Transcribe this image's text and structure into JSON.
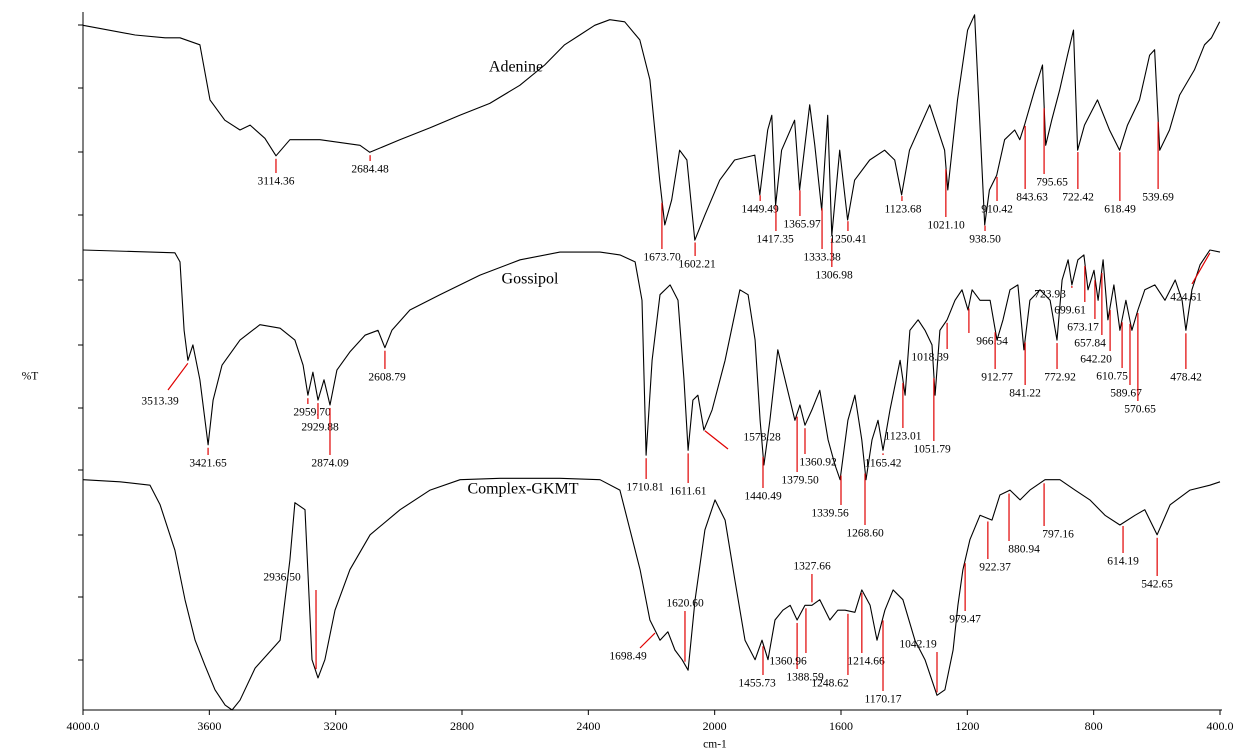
{
  "chart_data": {
    "type": "line",
    "x_label": "cm-1",
    "y_label": "%T",
    "xlim": [
      4000,
      400
    ],
    "ylim": [
      0,
      100
    ],
    "xticks": [
      {
        "value": 4000,
        "label": "4000.0"
      },
      3600,
      3200,
      2800,
      2400,
      2000,
      1600,
      1200,
      800,
      {
        "value": 400,
        "label": "400.0"
      }
    ],
    "peak_color": "#e00000",
    "series": [
      {
        "name": "Adenine",
        "color": "#000000",
        "x": [
          4000,
          3835,
          3740,
          3693,
          3630,
          3598,
          3551,
          3503,
          3471,
          3424,
          3389,
          3345,
          3250,
          3123,
          3092,
          2997,
          2902,
          2807,
          2712,
          2617,
          2538,
          2475,
          2427,
          2380,
          2332,
          2285,
          2237,
          2205,
          2174,
          2158,
          2136,
          2111,
          2088,
          2063,
          2031,
          1984,
          1937,
          1873,
          1857,
          1832,
          1819,
          1807,
          1788,
          1747,
          1731,
          1699,
          1683,
          1661,
          1642,
          1629,
          1604,
          1579,
          1557,
          1509,
          1462,
          1430,
          1408,
          1383,
          1319,
          1272,
          1262,
          1231,
          1199,
          1177,
          1161,
          1145,
          1130,
          1107,
          1082,
          1050,
          1034,
          1019,
          987,
          962,
          952,
          933,
          908,
          883,
          864,
          851,
          829,
          788,
          750,
          718,
          693,
          655,
          623,
          607,
          591,
          560,
          528,
          481,
          449,
          427,
          401
        ],
        "values": [
          98.1,
          96.7,
          96.3,
          96.3,
          95.3,
          87.4,
          84.5,
          83.1,
          83.8,
          81.9,
          79.4,
          81.7,
          81.7,
          80.9,
          79.9,
          81.7,
          83.4,
          85.2,
          86.9,
          89.5,
          92.4,
          95.3,
          96.7,
          98.1,
          98.9,
          98.6,
          96.0,
          90.3,
          75.9,
          69.5,
          73.1,
          80.2,
          78.8,
          67.3,
          70.9,
          75.9,
          78.8,
          79.5,
          73.8,
          83.1,
          85.2,
          72.3,
          80.2,
          84.5,
          74.5,
          86.7,
          80.9,
          71.6,
          85.2,
          68.0,
          80.2,
          70.2,
          75.9,
          78.8,
          80.2,
          78.8,
          73.8,
          80.2,
          86.7,
          80.2,
          74.5,
          87.4,
          97.4,
          99.6,
          84.5,
          69.5,
          74.5,
          76.6,
          81.7,
          83.1,
          81.7,
          83.8,
          88.8,
          92.4,
          80.9,
          84.5,
          88.8,
          93.8,
          97.4,
          80.2,
          83.8,
          87.4,
          83.1,
          80.2,
          83.8,
          87.4,
          93.8,
          94.6,
          80.2,
          83.1,
          88.1,
          91.7,
          95.3,
          96.3,
          98.6
        ],
        "peaks": [
          {
            "x": 3389,
            "label": "3114.36"
          },
          {
            "x": 3091,
            "label": "2684.48"
          },
          {
            "x": 2167,
            "label": "1673.70"
          },
          {
            "x": 2062,
            "label": "1602.21"
          },
          {
            "x": 1856,
            "label": "1449.49"
          },
          {
            "x": 1806,
            "label": "1417.35"
          },
          {
            "x": 1730,
            "label": "1365.97"
          },
          {
            "x": 1660,
            "label": "1333.38"
          },
          {
            "x": 1629,
            "label": "1306.98"
          },
          {
            "x": 1578,
            "label": "1250.41"
          },
          {
            "x": 1407,
            "label": "1123.68"
          },
          {
            "x": 1268,
            "label": "1021.10"
          },
          {
            "x": 1144,
            "label": "938.50"
          },
          {
            "x": 1106,
            "label": "910.42"
          },
          {
            "x": 1017,
            "label": "843.63"
          },
          {
            "x": 957,
            "label": "795.65"
          },
          {
            "x": 850,
            "label": "722.42"
          },
          {
            "x": 717,
            "label": "618.49"
          },
          {
            "x": 596,
            "label": "539.69"
          }
        ]
      },
      {
        "name": "Gossipol",
        "color": "#000000",
        "x": [
          4000,
          3709,
          3693,
          3680,
          3668,
          3652,
          3630,
          3604,
          3588,
          3560,
          3503,
          3440,
          3376,
          3329,
          3303,
          3288,
          3272,
          3256,
          3237,
          3218,
          3196,
          3155,
          3107,
          3066,
          3044,
          3022,
          2965,
          2870,
          2743,
          2616,
          2490,
          2363,
          2300,
          2252,
          2230,
          2217,
          2198,
          2173,
          2141,
          2116,
          2097,
          2084,
          2069,
          2053,
          2034,
          2008,
          1967,
          1920,
          1894,
          1872,
          1856,
          1844,
          1825,
          1800,
          1777,
          1746,
          1730,
          1714,
          1692,
          1667,
          1641,
          1619,
          1603,
          1578,
          1556,
          1534,
          1521,
          1502,
          1483,
          1467,
          1445,
          1413,
          1397,
          1382,
          1356,
          1334,
          1312,
          1302,
          1287,
          1264,
          1239,
          1217,
          1198,
          1185,
          1160,
          1128,
          1106,
          1087,
          1065,
          1040,
          1021,
          1002,
          970,
          938,
          916,
          900,
          881,
          869,
          850,
          831,
          818,
          799,
          786,
          770,
          755,
          736,
          717,
          698,
          679,
          660,
          638,
          606,
          574,
          542,
          520,
          508,
          489,
          463,
          432,
          400
        ],
        "values": [
          65.9,
          65.5,
          64.2,
          54.4,
          50.1,
          52.3,
          47.3,
          38.0,
          44.4,
          49.4,
          53.0,
          55.2,
          54.7,
          53.0,
          49.4,
          45.1,
          48.4,
          44.4,
          47.3,
          43.7,
          48.7,
          51.3,
          53.7,
          54.4,
          51.9,
          54.4,
          57.3,
          59.5,
          62.3,
          64.5,
          65.6,
          65.6,
          65.2,
          64.2,
          58.7,
          36.5,
          50.1,
          59.5,
          60.9,
          58.7,
          47.3,
          37.2,
          44.4,
          45.1,
          40.1,
          43.0,
          50.1,
          60.2,
          59.5,
          53.0,
          41.5,
          35.1,
          41.5,
          51.6,
          47.3,
          41.5,
          43.7,
          40.8,
          43.0,
          45.8,
          38.7,
          35.1,
          33.0,
          41.5,
          45.1,
          38.7,
          33.0,
          38.7,
          41.5,
          37.2,
          43.0,
          50.1,
          45.1,
          54.4,
          55.9,
          54.4,
          52.3,
          45.1,
          54.4,
          55.9,
          58.7,
          60.2,
          57.3,
          60.2,
          58.7,
          58.7,
          53.0,
          55.9,
          60.2,
          60.9,
          51.6,
          58.7,
          60.2,
          58.7,
          53.0,
          61.6,
          64.5,
          60.9,
          64.5,
          65.2,
          60.2,
          63.0,
          58.7,
          64.5,
          55.9,
          60.9,
          54.4,
          58.7,
          54.4,
          57.3,
          60.2,
          60.9,
          58.7,
          61.6,
          58.7,
          54.4,
          60.2,
          63.8,
          65.9,
          65.6
        ],
        "peaks": [
          {
            "x": 3668,
            "label": "3513.39"
          },
          {
            "x": 3604,
            "label": "3421.65"
          },
          {
            "x": 3288,
            "label": "2959.70"
          },
          {
            "x": 3256,
            "label": "2929.88"
          },
          {
            "x": 3218,
            "label": "2874.09"
          },
          {
            "x": 3044,
            "label": "2608.79"
          },
          {
            "x": 2217,
            "label": "1710.81"
          },
          {
            "x": 2084,
            "label": "1611.61"
          },
          {
            "x": 2031,
            "label": "1578.28"
          },
          {
            "x": 1847,
            "label": "1440.49"
          },
          {
            "x": 1739,
            "label": "1379.50"
          },
          {
            "x": 1714,
            "label": "1360.92"
          },
          {
            "x": 1600,
            "label": "1339.56"
          },
          {
            "x": 1524,
            "label": "1268.60"
          },
          {
            "x": 1467,
            "label": "1165.42"
          },
          {
            "x": 1404,
            "label": "1123.01"
          },
          {
            "x": 1306,
            "label": "1051.79"
          },
          {
            "x": 1264,
            "label": "1018.39"
          },
          {
            "x": 1195,
            "label": "966.54"
          },
          {
            "x": 1112,
            "label": "912.77"
          },
          {
            "x": 1017,
            "label": "841.22"
          },
          {
            "x": 916,
            "label": "772.92"
          },
          {
            "x": 869,
            "label": "723.93"
          },
          {
            "x": 828,
            "label": "699.61"
          },
          {
            "x": 796,
            "label": "673.17"
          },
          {
            "x": 774,
            "label": "657.84"
          },
          {
            "x": 748,
            "label": "642.20"
          },
          {
            "x": 710,
            "label": "610.75"
          },
          {
            "x": 685,
            "label": "589.67"
          },
          {
            "x": 660,
            "label": "570.65"
          },
          {
            "x": 508,
            "label": "478.42"
          },
          {
            "x": 432,
            "label": "424.61"
          }
        ]
      },
      {
        "name": "Complex-GKMT",
        "color": "#000000",
        "x": [
          4000,
          3883,
          3788,
          3756,
          3709,
          3677,
          3645,
          3614,
          3582,
          3550,
          3528,
          3503,
          3455,
          3376,
          3345,
          3329,
          3297,
          3275,
          3256,
          3234,
          3202,
          3155,
          3091,
          2996,
          2901,
          2806,
          2680,
          2490,
          2363,
          2300,
          2268,
          2236,
          2205,
          2173,
          2148,
          2126,
          2103,
          2084,
          2062,
          2031,
          1999,
          1967,
          1936,
          1904,
          1872,
          1850,
          1831,
          1809,
          1784,
          1761,
          1739,
          1714,
          1692,
          1667,
          1635,
          1610,
          1587,
          1556,
          1534,
          1508,
          1486,
          1461,
          1435,
          1404,
          1366,
          1334,
          1296,
          1271,
          1245,
          1230,
          1214,
          1192,
          1160,
          1122,
          1097,
          1065,
          1033,
          1002,
          954,
          907,
          859,
          812,
          764,
          717,
          669,
          638,
          599,
          558,
          495,
          432,
          400
        ],
        "values": [
          33.0,
          32.7,
          32.2,
          29.4,
          22.9,
          15.8,
          10.0,
          6.4,
          2.9,
          0.7,
          0,
          1.4,
          6.0,
          10.0,
          21.5,
          29.7,
          28.7,
          7.2,
          4.6,
          7.2,
          14.3,
          20.1,
          25.1,
          28.7,
          31.5,
          33.0,
          33.2,
          33.2,
          33.0,
          31.5,
          25.8,
          20.1,
          12.9,
          10.0,
          11.2,
          8.6,
          7.2,
          5.7,
          15.8,
          25.8,
          30.1,
          27.2,
          18.6,
          10.0,
          7.2,
          10.0,
          7.2,
          12.9,
          14.3,
          15.0,
          12.9,
          15.0,
          15.0,
          15.8,
          12.9,
          14.3,
          14.3,
          14.0,
          17.2,
          15.0,
          10.0,
          14.3,
          17.2,
          15.8,
          10.0,
          7.2,
          2.1,
          2.9,
          8.6,
          15.0,
          20.1,
          24.4,
          27.9,
          27.2,
          30.8,
          31.5,
          30.1,
          31.5,
          33.0,
          33.0,
          31.5,
          30.1,
          27.9,
          26.5,
          27.9,
          28.7,
          25.1,
          29.4,
          31.5,
          32.2,
          32.7
        ],
        "peaks": [
          {
            "x": 3262,
            "label": "2936.50"
          },
          {
            "x": 2189,
            "label": "1698.49"
          },
          {
            "x": 2094,
            "label": "1620.60"
          },
          {
            "x": 1847,
            "label": "1455.73"
          },
          {
            "x": 1739,
            "label": "1388.59"
          },
          {
            "x": 1711,
            "label": "1360.96"
          },
          {
            "x": 1692,
            "label": "1327.66"
          },
          {
            "x": 1578,
            "label": "1248.62"
          },
          {
            "x": 1534,
            "label": "1214.66"
          },
          {
            "x": 1467,
            "label": "1170.17"
          },
          {
            "x": 1296,
            "label": "1042.19"
          },
          {
            "x": 1207,
            "label": "979.47"
          },
          {
            "x": 1135,
            "label": "922.37"
          },
          {
            "x": 1068,
            "label": "880.94"
          },
          {
            "x": 957,
            "label": "797.16"
          },
          {
            "x": 707,
            "label": "614.19"
          },
          {
            "x": 599,
            "label": "542.65"
          }
        ]
      }
    ]
  }
}
